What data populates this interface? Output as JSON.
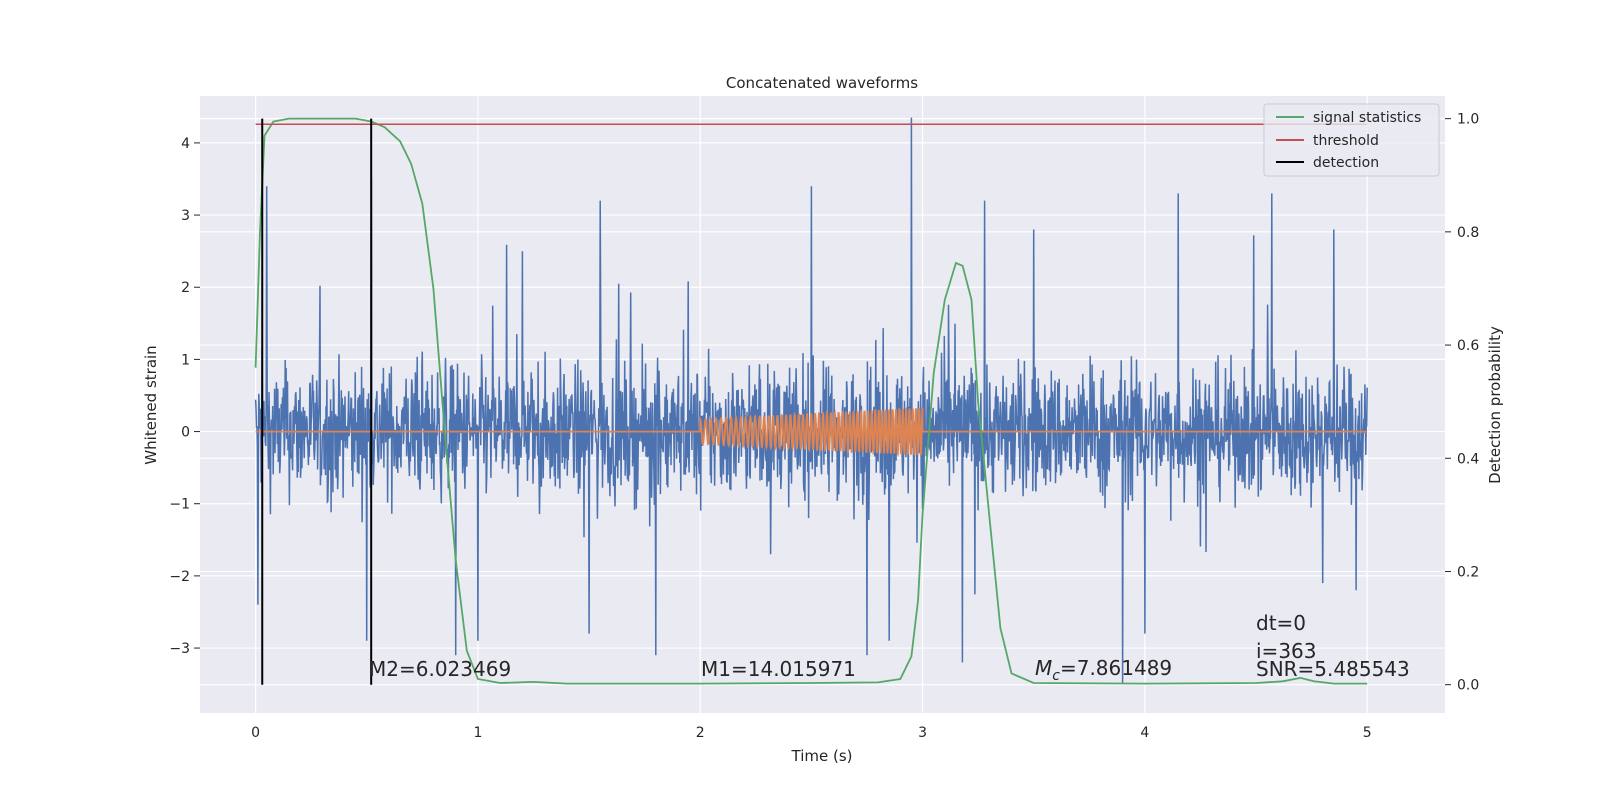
{
  "chart_data": {
    "type": "line",
    "title": "Concatenated waveforms",
    "xlabel": "Time (s)",
    "ylabel_left": "Whitened strain",
    "ylabel_right": "Detection probability",
    "xlim": [
      -0.25,
      5.35
    ],
    "ylim_left": [
      -3.9,
      4.65
    ],
    "ylim_right": [
      -0.05,
      1.04
    ],
    "xticks": [
      0,
      1,
      2,
      3,
      4,
      5
    ],
    "xtick_labels": [
      "0",
      "1",
      "2",
      "3",
      "4",
      "5"
    ],
    "yticks_left": [
      -3,
      -2,
      -1,
      0,
      1,
      2,
      3,
      4
    ],
    "ytick_labels_left": [
      "−3",
      "−2",
      "−1",
      "0",
      "1",
      "2",
      "3",
      "4"
    ],
    "yticks_right": [
      0.0,
      0.2,
      0.4,
      0.6,
      0.8,
      1.0
    ],
    "ytick_labels_right": [
      "0.0",
      "0.2",
      "0.4",
      "0.6",
      "0.8",
      "1.0"
    ],
    "grid": true,
    "legend_position": "top-right",
    "colors": {
      "strain": "#4c72b0",
      "template": "#dd8452",
      "signal_statistics": "#55a868",
      "threshold": "#c44e52",
      "detection": "#000000",
      "background": "#eaeaf2",
      "grid": "#ffffff"
    },
    "series": [
      {
        "name": "signal statistics",
        "axis": "right",
        "points": [
          [
            0.0,
            0.56
          ],
          [
            0.02,
            0.8
          ],
          [
            0.04,
            0.97
          ],
          [
            0.08,
            0.995
          ],
          [
            0.15,
            1.0
          ],
          [
            0.3,
            1.0
          ],
          [
            0.45,
            1.0
          ],
          [
            0.52,
            0.995
          ],
          [
            0.58,
            0.985
          ],
          [
            0.65,
            0.96
          ],
          [
            0.7,
            0.92
          ],
          [
            0.75,
            0.85
          ],
          [
            0.8,
            0.7
          ],
          [
            0.85,
            0.45
          ],
          [
            0.9,
            0.22
          ],
          [
            0.95,
            0.06
          ],
          [
            1.0,
            0.01
          ],
          [
            1.1,
            0.003
          ],
          [
            1.25,
            0.005
          ],
          [
            1.4,
            0.002
          ],
          [
            2.0,
            0.002
          ],
          [
            2.5,
            0.003
          ],
          [
            2.8,
            0.004
          ],
          [
            2.9,
            0.01
          ],
          [
            2.95,
            0.05
          ],
          [
            2.98,
            0.15
          ],
          [
            3.0,
            0.3
          ],
          [
            3.05,
            0.55
          ],
          [
            3.1,
            0.68
          ],
          [
            3.15,
            0.745
          ],
          [
            3.18,
            0.74
          ],
          [
            3.22,
            0.68
          ],
          [
            3.25,
            0.5
          ],
          [
            3.3,
            0.3
          ],
          [
            3.35,
            0.1
          ],
          [
            3.4,
            0.02
          ],
          [
            3.5,
            0.003
          ],
          [
            4.0,
            0.002
          ],
          [
            4.5,
            0.003
          ],
          [
            4.62,
            0.006
          ],
          [
            4.7,
            0.012
          ],
          [
            4.76,
            0.006
          ],
          [
            4.85,
            0.002
          ],
          [
            5.0,
            0.002
          ]
        ]
      },
      {
        "name": "threshold",
        "axis": "right",
        "points": [
          [
            0.0,
            0.99
          ],
          [
            5.0,
            0.99
          ]
        ]
      },
      {
        "name": "detection",
        "axis": "right",
        "x_values": [
          0.03,
          0.52
        ],
        "y_range": [
          0.0,
          1.0
        ]
      },
      {
        "name": "",
        "axis": "left",
        "role": "whitened strain (noise)",
        "x_range": [
          0.0,
          5.0
        ],
        "typical_range": [
          -1.6,
          1.6
        ],
        "peaks": [
          [
            0.05,
            3.4
          ],
          [
            0.5,
            3.5
          ],
          [
            0.52,
            3.5
          ],
          [
            1.2,
            2.5
          ],
          [
            1.55,
            3.2
          ],
          [
            2.5,
            3.4
          ],
          [
            2.95,
            4.35
          ],
          [
            3.28,
            3.2
          ],
          [
            3.5,
            2.8
          ],
          [
            4.15,
            3.3
          ],
          [
            4.57,
            3.3
          ],
          [
            4.85,
            2.8
          ],
          [
            0.01,
            -2.4
          ],
          [
            0.5,
            -2.9
          ],
          [
            0.9,
            -3.1
          ],
          [
            1.0,
            -2.9
          ],
          [
            1.5,
            -2.8
          ],
          [
            1.8,
            -3.1
          ],
          [
            2.75,
            -3.1
          ],
          [
            2.85,
            -2.9
          ],
          [
            3.18,
            -3.2
          ],
          [
            3.9,
            -3.5
          ],
          [
            4.0,
            -2.8
          ],
          [
            4.8,
            -2.1
          ],
          [
            4.95,
            -2.2
          ]
        ]
      },
      {
        "name": "",
        "axis": "left",
        "role": "template waveform",
        "x_range": [
          0.0,
          5.0
        ],
        "chirp": {
          "start": 2.0,
          "end": 3.0,
          "amp_start": 0.17,
          "amp_end": 0.33,
          "cycles": 55
        }
      }
    ],
    "legend": [
      {
        "label": "signal statistics",
        "color": "#55a868"
      },
      {
        "label": "threshold",
        "color": "#c44e52"
      },
      {
        "label": "detection",
        "color": "#000000"
      }
    ],
    "annotations": {
      "m2": "M2=6.023469",
      "m1": "M1=14.015971",
      "mc_symbol": "M",
      "mc_sub": "c",
      "mc_value": "=7.861489",
      "dt": "dt=0",
      "i": "i=363",
      "snr": "SNR=5.485543"
    }
  }
}
